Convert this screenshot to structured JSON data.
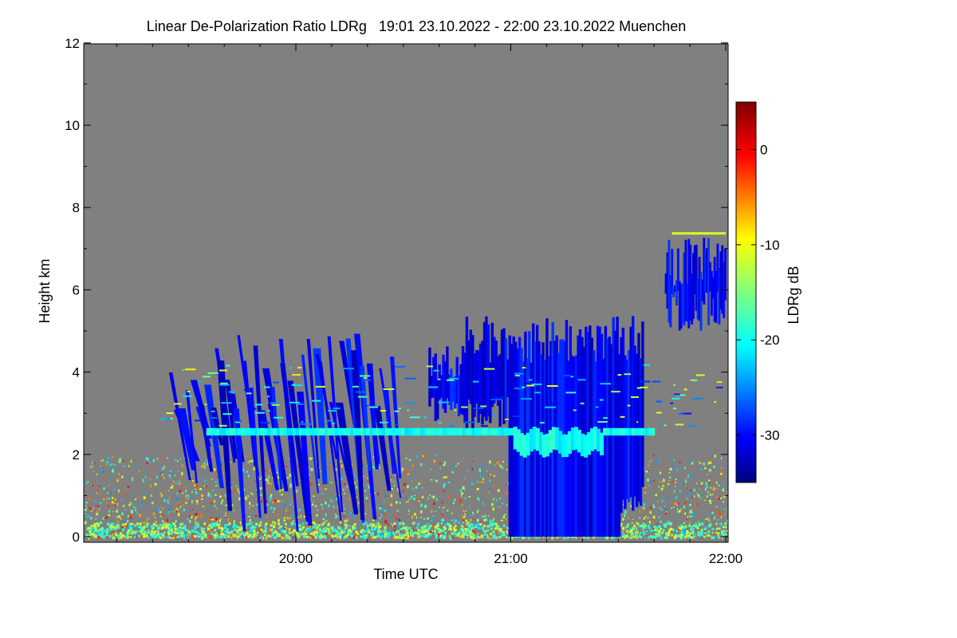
{
  "chart_data": {
    "type": "heatmap",
    "title": "Linear De-Polarization Ratio LDRg   19:01 23.10.2022 - 22:00 23.10.2022 Muenchen",
    "xlabel": "Time UTC",
    "ylabel": "Height km",
    "colorbar_label": "LDRg dB",
    "x_range": [
      "19:01",
      "22:00"
    ],
    "x_ticks": [
      "20:00",
      "21:00",
      "22:00"
    ],
    "ylim": [
      0,
      12
    ],
    "y_ticks": [
      "0",
      "2",
      "4",
      "6",
      "8",
      "10",
      "12"
    ],
    "colorbar_range": [
      -35,
      5
    ],
    "colorbar_ticks": [
      "0",
      "-10",
      "-20",
      "-30"
    ],
    "no_data_color": "#808080",
    "regions": [
      {
        "name": "ground clutter",
        "x": [
          "19:01",
          "22:00"
        ],
        "height_km": [
          0,
          2
        ],
        "ldr_db": [
          -25,
          0
        ]
      },
      {
        "name": "virga streaks",
        "x": [
          "19:30",
          "20:33"
        ],
        "height_km": [
          0.1,
          5.0
        ],
        "ldr_db": [
          -33,
          -28
        ]
      },
      {
        "name": "cloud",
        "x": [
          "20:37",
          "21:37"
        ],
        "height_km": [
          0,
          5.5
        ],
        "ldr_db": [
          -33,
          -28
        ]
      },
      {
        "name": "bright band",
        "x": [
          "19:35",
          "21:40"
        ],
        "height_km": [
          2.4,
          2.7
        ],
        "ldr_db": [
          -22,
          -18
        ]
      },
      {
        "name": "upper cloud",
        "x": [
          "21:43",
          "22:00"
        ],
        "height_km": [
          5.0,
          7.4
        ],
        "ldr_db": [
          -32,
          -28
        ]
      },
      {
        "name": "thin layer",
        "x": [
          "21:45",
          "22:00"
        ],
        "height_km": [
          7.3,
          7.4
        ],
        "ldr_db": [
          -15,
          -8
        ]
      }
    ]
  }
}
